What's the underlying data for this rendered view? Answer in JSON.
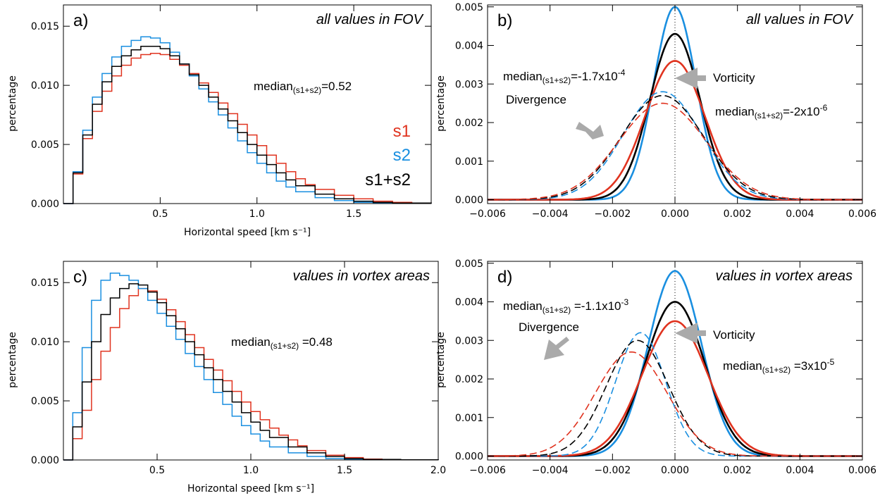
{
  "colors": {
    "s1": "#e0331f",
    "s2": "#1a8fe0",
    "s1s2": "#000000",
    "arrow": "#aaaaaa"
  },
  "chart_data": [
    {
      "panel": "a",
      "type": "line",
      "label": "a)",
      "title": "all values in FOV",
      "xlabel": "Horizontal speed [km s⁻¹]",
      "ylabel": "percentage",
      "xlim": [
        0,
        1.9
      ],
      "ylim": [
        0,
        0.0168
      ],
      "xticks": [
        0.5,
        1.0,
        1.5
      ],
      "xtick_labels": [
        "0.5",
        "1.0",
        "1.5"
      ],
      "yticks": [
        0,
        0.005,
        0.01,
        0.015
      ],
      "ytick_labels": [
        "0.000",
        "0.005",
        "0.010",
        "0.015"
      ],
      "annotation": {
        "main": "median",
        "sub": "(s1+s2)",
        "value": "=0.52"
      },
      "legend": [
        "s1",
        "s2",
        "s1+s2"
      ],
      "series": [
        {
          "name": "s1",
          "key": "s1",
          "points": [
            [
              0,
              0
            ],
            [
              0.05,
              0.0025
            ],
            [
              0.1,
              0.0055
            ],
            [
              0.15,
              0.0078
            ],
            [
              0.2,
              0.0095
            ],
            [
              0.25,
              0.0108
            ],
            [
              0.3,
              0.0117
            ],
            [
              0.35,
              0.0123
            ],
            [
              0.4,
              0.0126
            ],
            [
              0.45,
              0.0127
            ],
            [
              0.5,
              0.0126
            ],
            [
              0.55,
              0.0122
            ],
            [
              0.6,
              0.0117
            ],
            [
              0.65,
              0.011
            ],
            [
              0.7,
              0.0102
            ],
            [
              0.75,
              0.0094
            ],
            [
              0.8,
              0.0085
            ],
            [
              0.85,
              0.0076
            ],
            [
              0.9,
              0.0067
            ],
            [
              0.95,
              0.0058
            ],
            [
              1.0,
              0.0049
            ],
            [
              1.05,
              0.0041
            ],
            [
              1.1,
              0.0034
            ],
            [
              1.15,
              0.0027
            ],
            [
              1.2,
              0.0021
            ],
            [
              1.25,
              0.0016
            ],
            [
              1.3,
              0.0012
            ],
            [
              1.4,
              0.0007
            ],
            [
              1.5,
              0.0004
            ],
            [
              1.6,
              0.0002
            ],
            [
              1.7,
              0.0001
            ],
            [
              1.8,
              4e-05
            ],
            [
              1.9,
              2e-05
            ]
          ]
        },
        {
          "name": "s2",
          "key": "s2",
          "points": [
            [
              0,
              0
            ],
            [
              0.05,
              0.0027
            ],
            [
              0.1,
              0.0062
            ],
            [
              0.15,
              0.009
            ],
            [
              0.2,
              0.011
            ],
            [
              0.25,
              0.0124
            ],
            [
              0.3,
              0.0133
            ],
            [
              0.35,
              0.0138
            ],
            [
              0.4,
              0.0141
            ],
            [
              0.45,
              0.014
            ],
            [
              0.5,
              0.0136
            ],
            [
              0.55,
              0.0128
            ],
            [
              0.6,
              0.0118
            ],
            [
              0.65,
              0.0108
            ],
            [
              0.7,
              0.0097
            ],
            [
              0.75,
              0.0086
            ],
            [
              0.8,
              0.0075
            ],
            [
              0.85,
              0.0064
            ],
            [
              0.9,
              0.0053
            ],
            [
              0.95,
              0.0043
            ],
            [
              1.0,
              0.0034
            ],
            [
              1.05,
              0.0026
            ],
            [
              1.1,
              0.0019
            ],
            [
              1.15,
              0.0014
            ],
            [
              1.2,
              0.001
            ],
            [
              1.3,
              0.0005
            ],
            [
              1.4,
              0.00025
            ],
            [
              1.5,
              0.0001
            ],
            [
              1.6,
              5e-05
            ],
            [
              1.7,
              2e-05
            ],
            [
              1.9,
              0.0
            ]
          ]
        },
        {
          "name": "s1+s2",
          "key": "s1s2",
          "points": [
            [
              0,
              0
            ],
            [
              0.05,
              0.0026
            ],
            [
              0.1,
              0.0058
            ],
            [
              0.15,
              0.0084
            ],
            [
              0.2,
              0.0103
            ],
            [
              0.25,
              0.0116
            ],
            [
              0.3,
              0.0125
            ],
            [
              0.35,
              0.013
            ],
            [
              0.4,
              0.0133
            ],
            [
              0.45,
              0.0133
            ],
            [
              0.5,
              0.0131
            ],
            [
              0.55,
              0.0125
            ],
            [
              0.6,
              0.0118
            ],
            [
              0.65,
              0.0109
            ],
            [
              0.7,
              0.01
            ],
            [
              0.75,
              0.009
            ],
            [
              0.8,
              0.008
            ],
            [
              0.85,
              0.007
            ],
            [
              0.9,
              0.006
            ],
            [
              0.95,
              0.005
            ],
            [
              1.0,
              0.0041
            ],
            [
              1.05,
              0.0033
            ],
            [
              1.1,
              0.0026
            ],
            [
              1.15,
              0.002
            ],
            [
              1.2,
              0.0015
            ],
            [
              1.3,
              0.0008
            ],
            [
              1.4,
              0.0004
            ],
            [
              1.5,
              0.0002
            ],
            [
              1.6,
              0.0001
            ],
            [
              1.7,
              5e-05
            ],
            [
              1.9,
              1e-05
            ]
          ]
        }
      ]
    },
    {
      "panel": "b",
      "type": "line",
      "label": "b)",
      "title": "all values in FOV",
      "xlabel": "",
      "ylabel": "percentage",
      "xlim": [
        -0.006,
        0.006
      ],
      "ylim": [
        -0.0001,
        0.00505
      ],
      "xticks": [
        -0.006,
        -0.004,
        -0.002,
        0.0,
        0.002,
        0.004,
        0.006
      ],
      "xtick_labels": [
        "−0.006",
        "−0.004",
        "−0.002",
        "0.000",
        "0.002",
        "0.004",
        "0.006"
      ],
      "yticks": [
        0,
        0.001,
        0.002,
        0.003,
        0.004,
        0.005
      ],
      "ytick_labels": [
        "0.000",
        "0.001",
        "0.002",
        "0.003",
        "0.004",
        "0.005"
      ],
      "vline_x": 0,
      "annotations": [
        {
          "text": "Divergence",
          "main": "median",
          "sub": "(s1+s2)",
          "value": "=-1.7x10",
          "exp": "-4"
        },
        {
          "text": "Vorticity",
          "main": "median",
          "sub": "(s1+s2)",
          "value": "=-2x10",
          "exp": "-6"
        }
      ],
      "series": [
        {
          "name": "s2 vorticity",
          "key": "s2",
          "dashed": false,
          "peak": 0.005,
          "center": 0.0,
          "sigma": 0.00068
        },
        {
          "name": "s1+s2 vorticity",
          "key": "s1s2",
          "dashed": false,
          "peak": 0.0043,
          "center": 0.0,
          "sigma": 0.0008
        },
        {
          "name": "s1 vorticity",
          "key": "s1",
          "dashed": false,
          "peak": 0.0036,
          "center": 0.0,
          "sigma": 0.00095
        },
        {
          "name": "s2 divergence",
          "key": "s2",
          "dashed": true,
          "peak": 0.0028,
          "center": -0.0004,
          "sigma": 0.00125
        },
        {
          "name": "s1+s2 divergence",
          "key": "s1s2",
          "dashed": true,
          "peak": 0.0027,
          "center": -0.0004,
          "sigma": 0.00132
        },
        {
          "name": "s1 divergence",
          "key": "s1",
          "dashed": true,
          "peak": 0.0025,
          "center": -0.0004,
          "sigma": 0.0014
        }
      ]
    },
    {
      "panel": "c",
      "type": "line",
      "label": "c)",
      "title": "values in vortex areas",
      "xlabel": "Horizontal speed [km s⁻¹]",
      "ylabel": "percentage",
      "xlim": [
        0,
        2.0
      ],
      "ylim": [
        0,
        0.0168
      ],
      "xticks": [
        0.5,
        1.0,
        1.5,
        2.0
      ],
      "xtick_labels": [
        "0.5",
        "1.0",
        "1.5",
        "2.0"
      ],
      "yticks": [
        0,
        0.005,
        0.01,
        0.015
      ],
      "ytick_labels": [
        "0.000",
        "0.005",
        "0.010",
        "0.015"
      ],
      "annotation": {
        "main": "median",
        "sub": "(s1+s2)",
        "value": " =0.48"
      },
      "series": [
        {
          "name": "s1",
          "key": "s1",
          "points": [
            [
              0,
              0
            ],
            [
              0.05,
              0.0018
            ],
            [
              0.1,
              0.0042
            ],
            [
              0.15,
              0.0068
            ],
            [
              0.2,
              0.0092
            ],
            [
              0.25,
              0.0112
            ],
            [
              0.3,
              0.0128
            ],
            [
              0.35,
              0.0139
            ],
            [
              0.4,
              0.0145
            ],
            [
              0.45,
              0.0143
            ],
            [
              0.5,
              0.0136
            ],
            [
              0.55,
              0.0127
            ],
            [
              0.6,
              0.0117
            ],
            [
              0.65,
              0.0106
            ],
            [
              0.7,
              0.0095
            ],
            [
              0.75,
              0.0085
            ],
            [
              0.8,
              0.0076
            ],
            [
              0.85,
              0.0067
            ],
            [
              0.9,
              0.0058
            ],
            [
              0.95,
              0.0049
            ],
            [
              1.0,
              0.0041
            ],
            [
              1.05,
              0.0034
            ],
            [
              1.1,
              0.0027
            ],
            [
              1.15,
              0.0021
            ],
            [
              1.2,
              0.0017
            ],
            [
              1.25,
              0.0012
            ],
            [
              1.3,
              0.0008
            ],
            [
              1.4,
              0.0004
            ],
            [
              1.5,
              0.0002
            ],
            [
              1.6,
              8e-05
            ],
            [
              1.7,
              3e-05
            ],
            [
              1.8,
              1e-05
            ],
            [
              2.0,
              0.0
            ]
          ]
        },
        {
          "name": "s2",
          "key": "s2",
          "points": [
            [
              0,
              0
            ],
            [
              0.05,
              0.004
            ],
            [
              0.1,
              0.0095
            ],
            [
              0.15,
              0.0135
            ],
            [
              0.2,
              0.0152
            ],
            [
              0.25,
              0.0158
            ],
            [
              0.3,
              0.0156
            ],
            [
              0.35,
              0.0152
            ],
            [
              0.4,
              0.0145
            ],
            [
              0.45,
              0.0135
            ],
            [
              0.5,
              0.0124
            ],
            [
              0.55,
              0.0113
            ],
            [
              0.6,
              0.0102
            ],
            [
              0.65,
              0.009
            ],
            [
              0.7,
              0.0079
            ],
            [
              0.75,
              0.0068
            ],
            [
              0.8,
              0.0057
            ],
            [
              0.85,
              0.0047
            ],
            [
              0.9,
              0.0037
            ],
            [
              0.95,
              0.0029
            ],
            [
              1.0,
              0.0022
            ],
            [
              1.05,
              0.0016
            ],
            [
              1.1,
              0.0011
            ],
            [
              1.2,
              0.0006
            ],
            [
              1.3,
              0.0003
            ],
            [
              1.4,
              0.00012
            ],
            [
              1.5,
              5e-05
            ],
            [
              1.7,
              1e-05
            ],
            [
              2.0,
              0.0
            ]
          ]
        },
        {
          "name": "s1+s2",
          "key": "s1s2",
          "points": [
            [
              0,
              0
            ],
            [
              0.05,
              0.0028
            ],
            [
              0.1,
              0.0066
            ],
            [
              0.15,
              0.01
            ],
            [
              0.2,
              0.0123
            ],
            [
              0.25,
              0.0137
            ],
            [
              0.3,
              0.0145
            ],
            [
              0.35,
              0.0149
            ],
            [
              0.4,
              0.0148
            ],
            [
              0.45,
              0.0142
            ],
            [
              0.5,
              0.0133
            ],
            [
              0.55,
              0.0122
            ],
            [
              0.6,
              0.0111
            ],
            [
              0.65,
              0.01
            ],
            [
              0.7,
              0.0089
            ],
            [
              0.75,
              0.0078
            ],
            [
              0.8,
              0.0068
            ],
            [
              0.85,
              0.0058
            ],
            [
              0.9,
              0.0049
            ],
            [
              0.95,
              0.004
            ],
            [
              1.0,
              0.0032
            ],
            [
              1.05,
              0.0025
            ],
            [
              1.1,
              0.0019
            ],
            [
              1.2,
              0.0011
            ],
            [
              1.3,
              0.0006
            ],
            [
              1.4,
              0.0003
            ],
            [
              1.5,
              0.00012
            ],
            [
              1.6,
              5e-05
            ],
            [
              1.8,
              1e-05
            ],
            [
              2.0,
              0.0
            ]
          ]
        }
      ]
    },
    {
      "panel": "d",
      "type": "line",
      "label": "d)",
      "title": "values in vortex areas",
      "xlabel": "",
      "ylabel": "percentage",
      "xlim": [
        -0.006,
        0.006
      ],
      "ylim": [
        -0.0001,
        0.00505
      ],
      "xticks": [
        -0.006,
        -0.004,
        -0.002,
        0.0,
        0.002,
        0.004,
        0.006
      ],
      "xtick_labels": [
        "−0.006",
        "−0.004",
        "−0.002",
        "0.000",
        "0.002",
        "0.004",
        "0.006"
      ],
      "yticks": [
        0,
        0.001,
        0.002,
        0.003,
        0.004,
        0.005
      ],
      "ytick_labels": [
        "0.000",
        "0.001",
        "0.002",
        "0.003",
        "0.004",
        "0.005"
      ],
      "vline_x": 0,
      "annotations": [
        {
          "text": "Divergence",
          "main": "median",
          "sub": "(s1+s2)",
          "value": " =-1.1x10",
          "exp": "-3"
        },
        {
          "text": "Vorticity",
          "main": "median",
          "sub": "(s1+s2)",
          "value": " =3x10",
          "exp": "-5"
        }
      ],
      "series": [
        {
          "name": "s2 vorticity",
          "key": "s2",
          "dashed": false,
          "peak": 0.0048,
          "center": 0.0,
          "sigma": 0.00085
        },
        {
          "name": "s1+s2 vorticity",
          "key": "s1s2",
          "dashed": false,
          "peak": 0.004,
          "center": 0.0,
          "sigma": 0.00095
        },
        {
          "name": "s1 vorticity",
          "key": "s1",
          "dashed": false,
          "peak": 0.0035,
          "center": 0.0,
          "sigma": 0.00105
        },
        {
          "name": "s2 divergence",
          "key": "s2",
          "dashed": true,
          "peak": 0.0032,
          "center": -0.0011,
          "sigma": 0.0008
        },
        {
          "name": "s1+s2 divergence",
          "key": "s1s2",
          "dashed": true,
          "peak": 0.003,
          "center": -0.0012,
          "sigma": 0.001
        },
        {
          "name": "s1 divergence",
          "key": "s1",
          "dashed": true,
          "peak": 0.0027,
          "center": -0.0014,
          "sigma": 0.00115
        }
      ]
    }
  ]
}
